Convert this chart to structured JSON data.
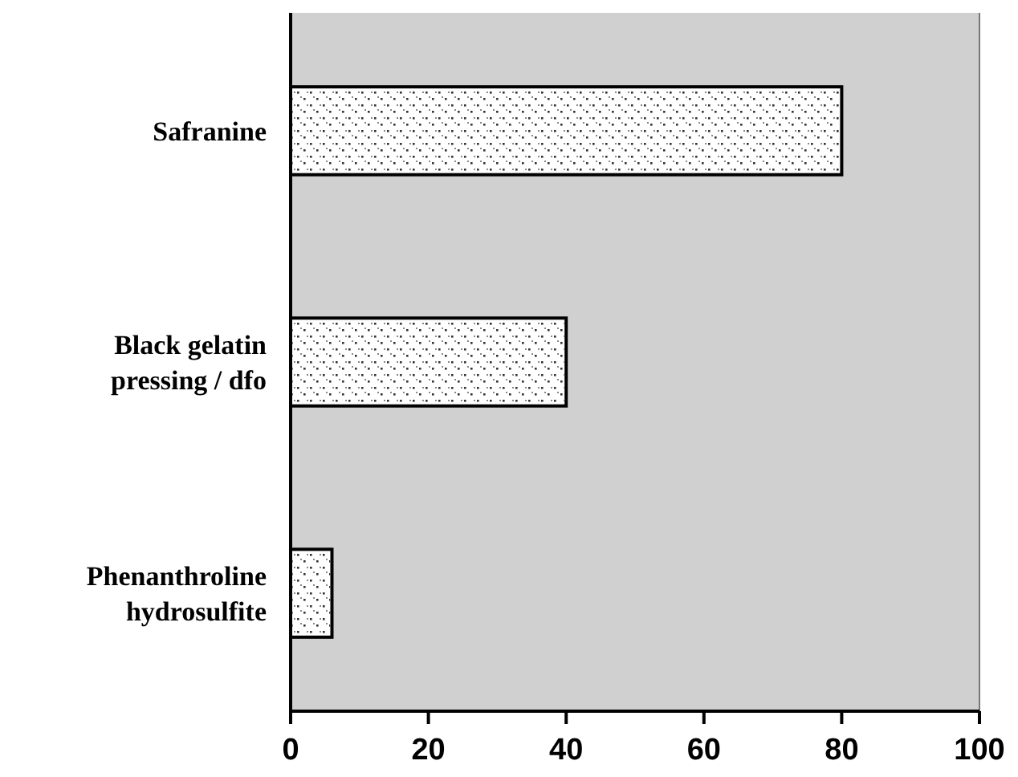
{
  "chart_data": {
    "type": "bar",
    "orientation": "horizontal",
    "categories": [
      "Safranine",
      "Black gelatin pressing / dfo",
      "Phenanthroline hydrosulfite"
    ],
    "values": [
      80,
      40,
      6
    ],
    "color": "#ffffff",
    "xlim": [
      0,
      100
    ],
    "xticks": [
      0,
      20,
      40,
      60,
      80,
      100
    ]
  }
}
